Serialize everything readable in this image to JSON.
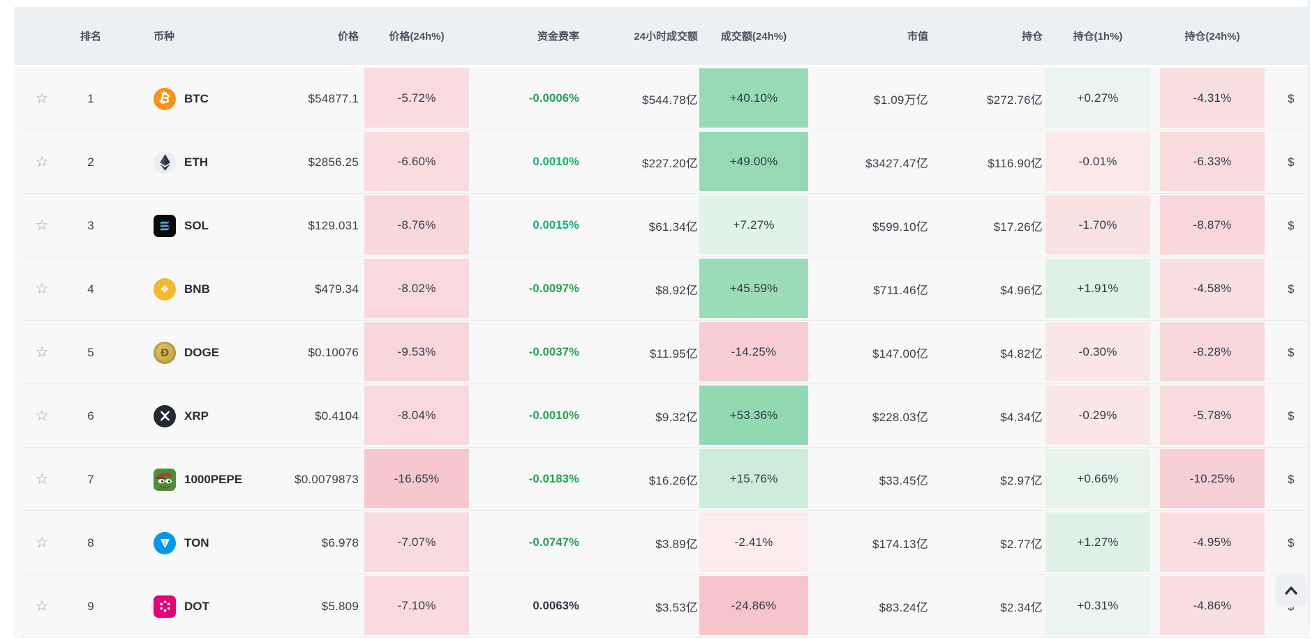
{
  "header": {
    "columns": [
      {
        "id": "fav",
        "label": ""
      },
      {
        "id": "rank",
        "label": "排名"
      },
      {
        "id": "coin",
        "label": "币种"
      },
      {
        "id": "price",
        "label": "价格"
      },
      {
        "id": "price_chg_24h",
        "label": "价格(24h%)"
      },
      {
        "id": "funding",
        "label": "资金费率"
      },
      {
        "id": "volume_24h",
        "label": "24小时成交额"
      },
      {
        "id": "volume_chg_24h",
        "label": "成交额(24h%)"
      },
      {
        "id": "market_cap",
        "label": "市值"
      },
      {
        "id": "open_interest",
        "label": "持仓"
      },
      {
        "id": "oi_chg_1h",
        "label": "持仓(1h%)"
      },
      {
        "id": "gap",
        "label": ""
      },
      {
        "id": "oi_chg_24h",
        "label": "持仓(24h%)"
      },
      {
        "id": "next",
        "label": ""
      }
    ]
  },
  "colors": {
    "header_bg": "#edf0f3",
    "row_bg": "#f8f8f9",
    "funding_positive_bright": "#0db368",
    "funding_negative_green": "#21a152",
    "funding_neutral_dark": "#2f3540"
  },
  "rows": [
    {
      "rank": "1",
      "symbol": "BTC",
      "icon": "btc-icon",
      "star": "☆",
      "price": "$54877.1",
      "price_chg_24h": {
        "text": "-5.72%",
        "bg": "#fadce0"
      },
      "funding": {
        "text": "-0.0006%",
        "color": "#21a152"
      },
      "volume_24h": "$544.78亿",
      "volume_chg_24h": {
        "text": "+40.10%",
        "bg": "#98d9b6"
      },
      "market_cap": "$1.09万亿",
      "open_interest": "$272.76亿",
      "oi_chg_1h": {
        "text": "+0.27%",
        "bg": "#e9f5ee"
      },
      "oi_chg_24h": {
        "text": "-4.31%",
        "bg": "#f9dee2"
      },
      "next_partial": "$"
    },
    {
      "rank": "2",
      "symbol": "ETH",
      "icon": "eth-icon",
      "star": "☆",
      "price": "$2856.25",
      "price_chg_24h": {
        "text": "-6.60%",
        "bg": "#fadbdf"
      },
      "funding": {
        "text": "0.0010%",
        "color": "#0db368"
      },
      "volume_24h": "$227.20亿",
      "volume_chg_24h": {
        "text": "+49.00%",
        "bg": "#97d9b5"
      },
      "market_cap": "$3427.47亿",
      "open_interest": "$116.90亿",
      "oi_chg_1h": {
        "text": "-0.01%",
        "bg": "#fbe9ea"
      },
      "oi_chg_24h": {
        "text": "-6.33%",
        "bg": "#f9dade"
      },
      "next_partial": "$"
    },
    {
      "rank": "3",
      "symbol": "SOL",
      "icon": "sol-icon",
      "star": "☆",
      "price": "$129.031",
      "price_chg_24h": {
        "text": "-8.76%",
        "bg": "#f9d8dc"
      },
      "funding": {
        "text": "0.0015%",
        "color": "#0db368"
      },
      "volume_24h": "$61.34亿",
      "volume_chg_24h": {
        "text": "+7.27%",
        "bg": "#e2f3e9"
      },
      "market_cap": "$599.10亿",
      "open_interest": "$17.26亿",
      "oi_chg_1h": {
        "text": "-1.70%",
        "bg": "#fae2e4"
      },
      "oi_chg_24h": {
        "text": "-8.87%",
        "bg": "#f8d6da"
      },
      "next_partial": "$"
    },
    {
      "rank": "4",
      "symbol": "BNB",
      "icon": "bnb-icon",
      "star": "☆",
      "price": "$479.34",
      "price_chg_24h": {
        "text": "-8.02%",
        "bg": "#f9d9dd"
      },
      "funding": {
        "text": "-0.0097%",
        "color": "#21a152"
      },
      "volume_24h": "$8.92亿",
      "volume_chg_24h": {
        "text": "+45.59%",
        "bg": "#9cdbb8"
      },
      "market_cap": "$711.46亿",
      "open_interest": "$4.96亿",
      "oi_chg_1h": {
        "text": "+1.91%",
        "bg": "#def1e6"
      },
      "oi_chg_24h": {
        "text": "-4.58%",
        "bg": "#f9dee2"
      },
      "next_partial": "$"
    },
    {
      "rank": "5",
      "symbol": "DOGE",
      "icon": "doge-icon",
      "star": "☆",
      "price": "$0.10076",
      "price_chg_24h": {
        "text": "-9.53%",
        "bg": "#f9d6da"
      },
      "funding": {
        "text": "-0.0037%",
        "color": "#21a152"
      },
      "volume_24h": "$11.95亿",
      "volume_chg_24h": {
        "text": "-14.25%",
        "bg": "#f8ced4"
      },
      "market_cap": "$147.00亿",
      "open_interest": "$4.82亿",
      "oi_chg_1h": {
        "text": "-0.30%",
        "bg": "#fbe7e9"
      },
      "oi_chg_24h": {
        "text": "-8.28%",
        "bg": "#f8d7db"
      },
      "next_partial": "$"
    },
    {
      "rank": "6",
      "symbol": "XRP",
      "icon": "xrp-icon",
      "star": "☆",
      "price": "$0.4104",
      "price_chg_24h": {
        "text": "-8.04%",
        "bg": "#f9d9dd"
      },
      "funding": {
        "text": "-0.0010%",
        "color": "#21a152"
      },
      "volume_24h": "$9.32亿",
      "volume_chg_24h": {
        "text": "+53.36%",
        "bg": "#92d8b2"
      },
      "market_cap": "$228.03亿",
      "open_interest": "$4.34亿",
      "oi_chg_1h": {
        "text": "-0.29%",
        "bg": "#fbe7e9"
      },
      "oi_chg_24h": {
        "text": "-5.78%",
        "bg": "#f9dbdf"
      },
      "next_partial": "$"
    },
    {
      "rank": "7",
      "symbol": "1000PEPE",
      "icon": "pepe-icon",
      "star": "☆",
      "price": "$0.0079873",
      "price_chg_24h": {
        "text": "-16.65%",
        "bg": "#f7c7ce"
      },
      "funding": {
        "text": "-0.0183%",
        "color": "#21a152"
      },
      "volume_24h": "$16.26亿",
      "volume_chg_24h": {
        "text": "+15.76%",
        "bg": "#cdecd9"
      },
      "market_cap": "$33.45亿",
      "open_interest": "$2.97亿",
      "oi_chg_1h": {
        "text": "+0.66%",
        "bg": "#e6f4eb"
      },
      "oi_chg_24h": {
        "text": "-10.25%",
        "bg": "#f7d0d6"
      },
      "next_partial": "$"
    },
    {
      "rank": "8",
      "symbol": "TON",
      "icon": "ton-icon",
      "star": "☆",
      "price": "$6.978",
      "price_chg_24h": {
        "text": "-7.07%",
        "bg": "#f9dade"
      },
      "funding": {
        "text": "-0.0747%",
        "color": "#21a152"
      },
      "volume_24h": "$3.89亿",
      "volume_chg_24h": {
        "text": "-2.41%",
        "bg": "#fcecee"
      },
      "market_cap": "$174.13亿",
      "open_interest": "$2.77亿",
      "oi_chg_1h": {
        "text": "+1.27%",
        "bg": "#e0f2e7"
      },
      "oi_chg_24h": {
        "text": "-4.95%",
        "bg": "#f9dde1"
      },
      "next_partial": "$"
    },
    {
      "rank": "9",
      "symbol": "DOT",
      "icon": "dot-icon",
      "star": "☆",
      "price": "$5.809",
      "price_chg_24h": {
        "text": "-7.10%",
        "bg": "#f9dade"
      },
      "funding": {
        "text": "0.0063%",
        "color": "#2f3540"
      },
      "volume_24h": "$3.53亿",
      "volume_chg_24h": {
        "text": "-24.86%",
        "bg": "#f6c4cb"
      },
      "market_cap": "$83.24亿",
      "open_interest": "$2.34亿",
      "oi_chg_1h": {
        "text": "+0.31%",
        "bg": "#e9f5ee"
      },
      "oi_chg_24h": {
        "text": "-4.86%",
        "bg": "#f9dee2"
      },
      "next_partial": "$"
    }
  ],
  "scroll_top": {
    "icon": "chevron-up-icon"
  }
}
